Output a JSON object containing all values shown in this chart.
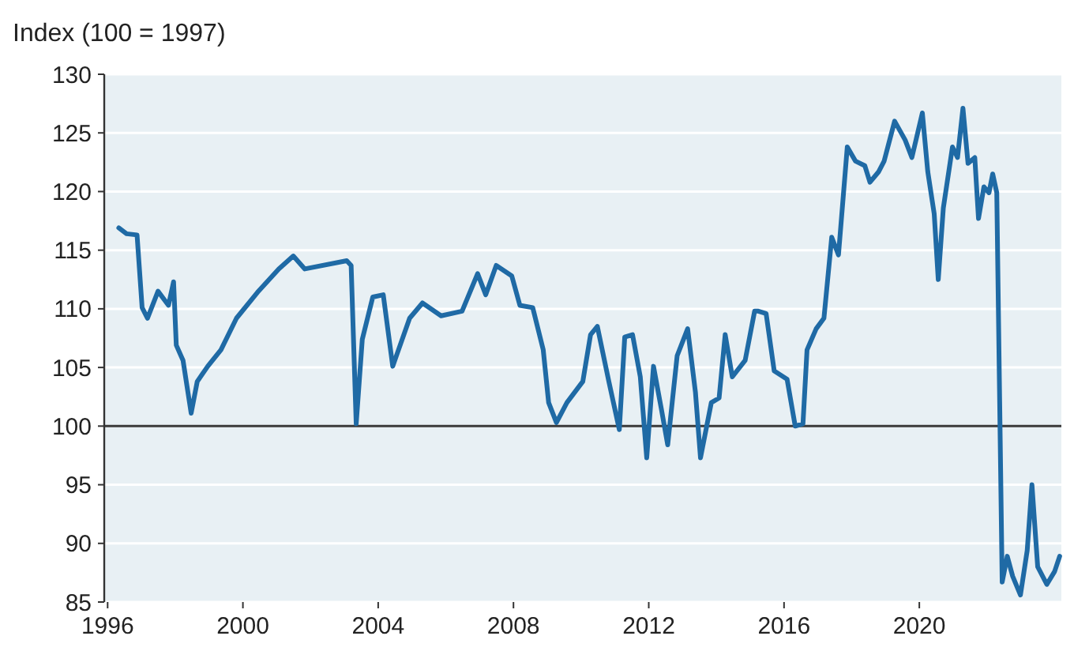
{
  "chart_data": {
    "type": "line",
    "ylabel": "Index (100 = 1997)",
    "xlim": [
      1995.9,
      2024.2
    ],
    "xticks": [
      1996,
      2000,
      2004,
      2008,
      2012,
      2016,
      2020
    ],
    "ylim": [
      85,
      130
    ],
    "yticks": [
      85,
      90,
      95,
      100,
      105,
      110,
      115,
      120,
      125,
      130
    ],
    "grid": "y",
    "ref_lines": [
      {
        "axis": "y",
        "value": 100,
        "color": "#3a3a3a"
      }
    ],
    "series": [
      {
        "color": "#1f6aa5",
        "x": [
          1996.33,
          1996.56,
          1996.87,
          1997.02,
          1997.18,
          1997.49,
          1997.8,
          1997.95,
          1998.03,
          1998.23,
          1998.47,
          1998.65,
          1998.96,
          1999.35,
          1999.81,
          2000.43,
          2001.06,
          2001.49,
          2001.83,
          2003.07,
          2003.2,
          2003.35,
          2003.53,
          2003.84,
          2004.15,
          2004.43,
          2004.93,
          2005.31,
          2005.86,
          2006.48,
          2006.94,
          2007.18,
          2007.49,
          2007.95,
          2008.19,
          2008.57,
          2008.88,
          2009.04,
          2009.27,
          2009.58,
          2010.05,
          2010.28,
          2010.48,
          2010.82,
          2011.13,
          2011.29,
          2011.52,
          2011.75,
          2011.94,
          2012.14,
          2012.37,
          2012.56,
          2012.84,
          2013.15,
          2013.38,
          2013.53,
          2013.85,
          2014.08,
          2014.26,
          2014.47,
          2014.85,
          2015.13,
          2015.24,
          2015.47,
          2015.71,
          2016.09,
          2016.33,
          2016.56,
          2016.68,
          2016.95,
          2017.18,
          2017.41,
          2017.61,
          2017.87,
          2018.11,
          2018.39,
          2018.54,
          2018.8,
          2018.96,
          2019.27,
          2019.58,
          2019.78,
          2020.09,
          2020.25,
          2020.44,
          2020.56,
          2020.71,
          2020.98,
          2021.13,
          2021.29,
          2021.44,
          2021.64,
          2021.75,
          2021.91,
          2022.06,
          2022.17,
          2022.29,
          2022.45,
          2022.6,
          2022.76,
          2022.99,
          2023.19,
          2023.33,
          2023.5,
          2023.77,
          2024.0,
          2024.15
        ],
        "values": [
          116.9,
          116.4,
          116.3,
          110.1,
          109.2,
          111.5,
          110.3,
          112.3,
          106.9,
          105.6,
          101.1,
          103.8,
          105.1,
          106.5,
          109.2,
          111.4,
          113.4,
          114.5,
          113.4,
          114.1,
          113.7,
          100.2,
          107.4,
          111.0,
          111.2,
          105.1,
          109.2,
          110.5,
          109.4,
          109.8,
          113.0,
          111.2,
          113.7,
          112.8,
          110.3,
          110.1,
          106.5,
          102.0,
          100.3,
          102.0,
          103.8,
          107.8,
          108.5,
          103.8,
          99.7,
          107.6,
          107.8,
          104.2,
          97.3,
          105.1,
          101.5,
          98.4,
          106.0,
          108.3,
          102.9,
          97.3,
          102.0,
          102.4,
          107.8,
          104.2,
          105.6,
          109.8,
          109.8,
          109.6,
          104.7,
          104.0,
          100.0,
          100.2,
          106.5,
          108.3,
          109.2,
          116.1,
          114.6,
          123.8,
          122.6,
          122.2,
          120.8,
          121.7,
          122.6,
          126.0,
          124.4,
          122.9,
          126.7,
          121.7,
          118.1,
          112.5,
          118.6,
          123.8,
          122.9,
          127.1,
          122.4,
          122.9,
          117.7,
          120.4,
          119.9,
          121.5,
          119.9,
          86.7,
          88.9,
          87.2,
          85.6,
          89.4,
          95.0,
          88.0,
          86.5,
          87.6,
          88.9
        ]
      }
    ]
  }
}
